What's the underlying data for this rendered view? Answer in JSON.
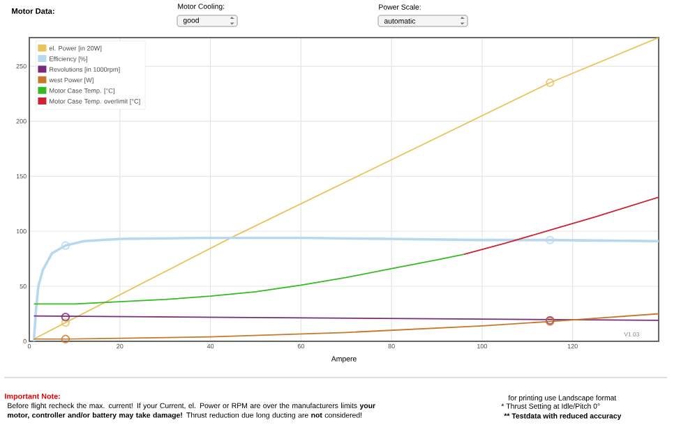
{
  "chart_data": {
    "type": "line",
    "xlabel": "Ampere",
    "xlim": [
      0,
      139
    ],
    "ylim": [
      0,
      276
    ],
    "xticks": [
      0,
      20,
      40,
      60,
      80,
      100,
      120
    ],
    "yticks": [
      0,
      50,
      100,
      150,
      200,
      250
    ],
    "grid": true,
    "legend": "top left",
    "series": [
      {
        "name": "el. Power [in 20W]",
        "color": "#ebc35c",
        "x": [
          1,
          8,
          45,
          115,
          139
        ],
        "values": [
          2,
          17,
          95,
          235,
          276
        ]
      },
      {
        "name": "Efficiency [%]",
        "color": "#b8d8f0",
        "x": [
          1,
          1.5,
          2,
          3,
          5,
          8,
          12,
          20,
          40,
          60,
          80,
          100,
          115,
          139
        ],
        "values": [
          0,
          30,
          50,
          65,
          80,
          87,
          91,
          93,
          94,
          94,
          93,
          92,
          92,
          91
        ]
      },
      {
        "name": "Revolutions [in 1000rpm]",
        "color": "#7a2a7a",
        "x": [
          1,
          139
        ],
        "values": [
          23,
          19
        ]
      },
      {
        "name": "west Power [W]",
        "color": "#c8782a",
        "x": [
          1,
          8,
          40,
          70,
          100,
          115,
          139
        ],
        "values": [
          2,
          2,
          4,
          8,
          14,
          18,
          25
        ]
      },
      {
        "name": "Motor Case Temp. [°C]",
        "color": "#33bb22",
        "x": [
          1,
          10,
          20,
          30,
          40,
          50,
          60,
          70,
          80,
          90,
          96
        ],
        "values": [
          34,
          34,
          36,
          38,
          41,
          45,
          51,
          58,
          66,
          74,
          79
        ]
      },
      {
        "name": "Motor Case Temp. overlimit [°C]",
        "color": "#cc2233",
        "x": [
          96,
          105,
          115,
          125,
          139
        ],
        "values": [
          79,
          89,
          101,
          113,
          131
        ]
      },
      {
        "type": "scatter",
        "marker": "circle",
        "color": "#ebc35c",
        "x": [
          8,
          115
        ],
        "values": [
          17,
          235
        ]
      },
      {
        "type": "scatter",
        "marker": "circle",
        "color": "#b8d8f0",
        "x": [
          8,
          115
        ],
        "values": [
          87,
          92
        ]
      },
      {
        "type": "scatter",
        "marker": "circle",
        "color": "#7a2a7a",
        "x": [
          8,
          115
        ],
        "values": [
          22,
          19
        ]
      },
      {
        "type": "scatter",
        "marker": "circle",
        "color": "#c8782a",
        "x": [
          8,
          115
        ],
        "values": [
          2,
          18
        ]
      }
    ],
    "annotations": [
      "Motor Data:",
      "Motor Cooling:",
      "good",
      "Power Scale:",
      "automatic",
      "Important Note:",
      "Before flight recheck the max. current! If your Current, el. Power or RPM are over the manufacturers limits **your motor, controller and/or battery may take damage!** Thrust reduction due long ducting are **not** considered!",
      "for printing use Landscape format",
      "* Thrust Setting at Idle/Pitch 0°",
      "** Testdata with reduced accuracy",
      "V1.03"
    ]
  }
}
